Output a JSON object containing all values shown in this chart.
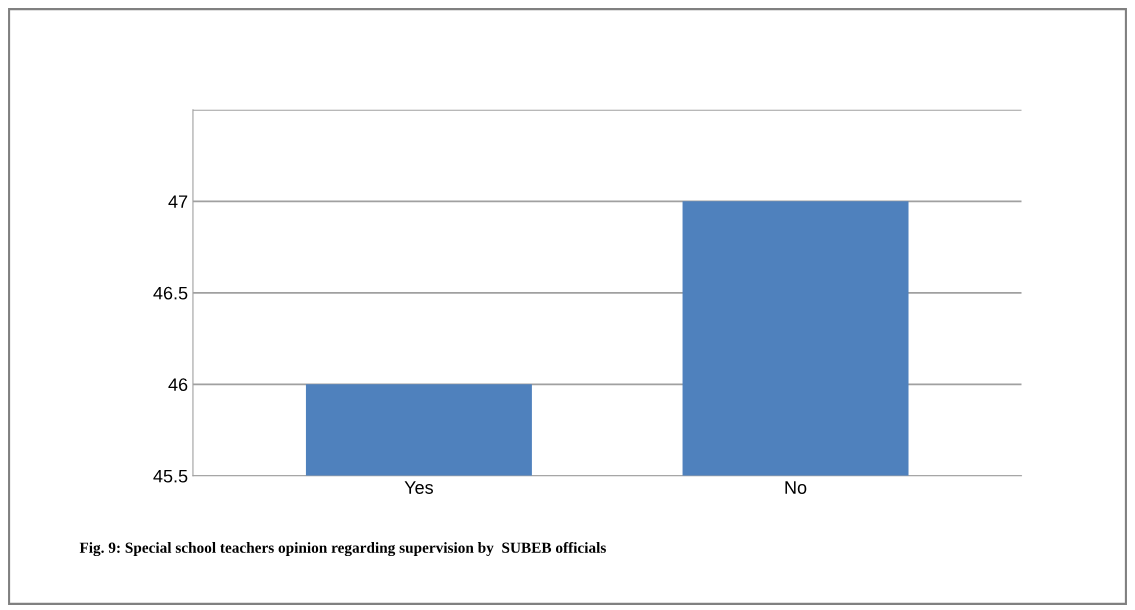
{
  "chart_data": {
    "type": "bar",
    "categories": [
      "Yes",
      "No"
    ],
    "values": [
      46,
      47
    ],
    "color": "#4f81bd",
    "ylim": [
      45.5,
      47.5
    ],
    "yticks": [
      45.5,
      46,
      46.5,
      47,
      {
        "value": 47.5,
        "label": null
      }
    ],
    "grid": "y",
    "annotations": [
      "Fig. 9: Special school teachers opinion regarding supervision by  SUBEB officials"
    ]
  }
}
